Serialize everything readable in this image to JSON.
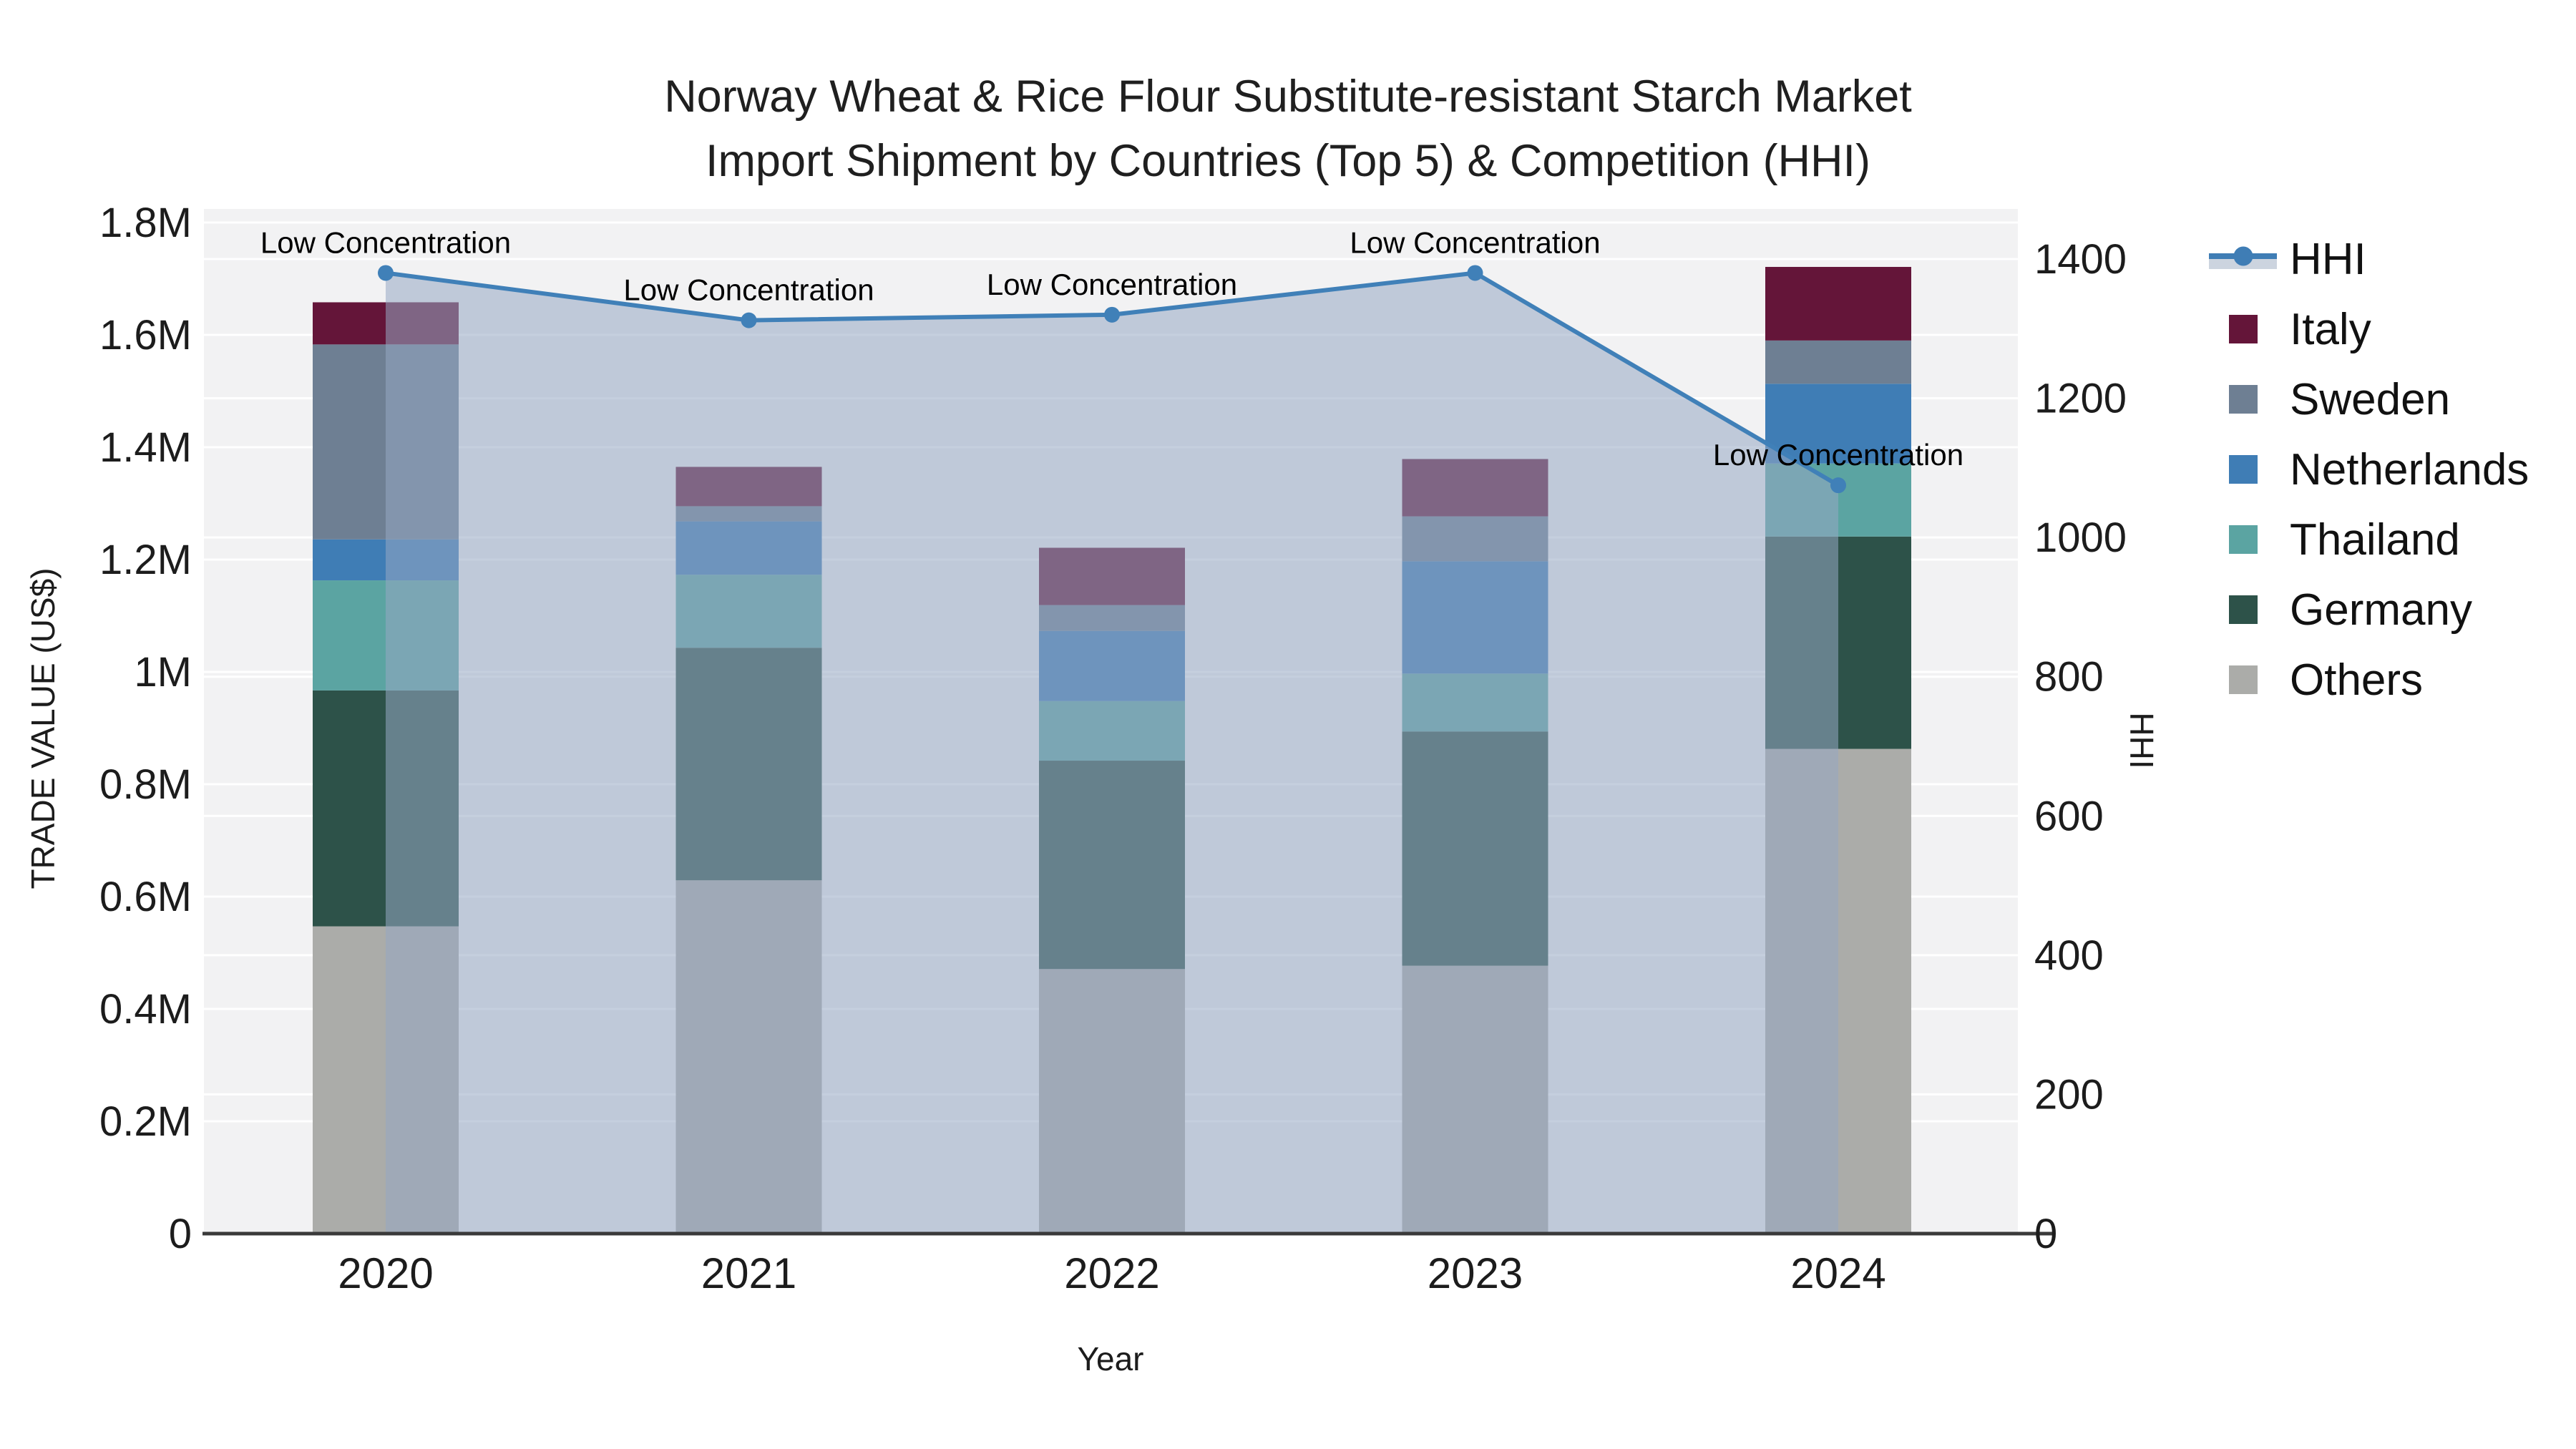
{
  "title": {
    "line1": "Norway Wheat & Rice Flour Substitute-resistant Starch Market",
    "line2": "Import Shipment by Countries (Top 5) & Competition (HHI)"
  },
  "colors": {
    "plot_background": "#f2f2f3",
    "gridline": "#ffffff",
    "axis_line": "#3a3a3a",
    "text": "#1c1c1c",
    "annotation_text": "#000000",
    "hhi_line": "#4080b8",
    "hhi_area": "rgba(150,168,194,0.55)"
  },
  "chart_data": {
    "type": "bar",
    "subtype": "stacked-bars-with-line-overlay-dual-axis",
    "title": "Norway Wheat & Rice Flour Substitute-resistant Starch Market Import Shipment by Countries (Top 5) & Competition (HHI)",
    "categories": [
      "2020",
      "2021",
      "2022",
      "2023",
      "2024"
    ],
    "xlabel": "Year",
    "ylabel_left": "TRADE VALUE (US$)",
    "ylabel_right": "HHI",
    "ylim_left": [
      0,
      1800000
    ],
    "ylim_right": [
      0,
      1400
    ],
    "grid": true,
    "legend_position": "right",
    "legend_order": [
      "HHI",
      "Italy",
      "Sweden",
      "Netherlands",
      "Thailand",
      "Germany",
      "Others"
    ],
    "bar_series": [
      {
        "name": "Others",
        "color": "#abaca9",
        "values": [
          547000,
          629000,
          471000,
          477000,
          863000
        ]
      },
      {
        "name": "Germany",
        "color": "#2d5249",
        "values": [
          420000,
          414000,
          371000,
          417000,
          378000
        ]
      },
      {
        "name": "Thailand",
        "color": "#5ba4a2",
        "values": [
          196000,
          130000,
          106000,
          103000,
          130000
        ]
      },
      {
        "name": "Netherlands",
        "color": "#3f7db5",
        "values": [
          73000,
          95000,
          125000,
          200000,
          142000
        ]
      },
      {
        "name": "Sweden",
        "color": "#6e7f93",
        "values": [
          347000,
          27000,
          46000,
          80000,
          77000
        ]
      },
      {
        "name": "Italy",
        "color": "#641539",
        "values": [
          75000,
          70000,
          102000,
          102000,
          131000
        ]
      }
    ],
    "line_series": {
      "name": "HHI",
      "axis": "right",
      "color": "#4080b8",
      "area_fill": "rgba(150,168,194,0.55)",
      "values": [
        1380,
        1312,
        1320,
        1380,
        1075
      ],
      "point_annotations": [
        "Low Concentration",
        "Low Concentration",
        "Low Concentration",
        "Low Concentration",
        "Low Concentration"
      ]
    },
    "y_left_ticks": [
      {
        "value": 0,
        "label": "0"
      },
      {
        "value": 200000,
        "label": "0.2M"
      },
      {
        "value": 400000,
        "label": "0.4M"
      },
      {
        "value": 600000,
        "label": "0.6M"
      },
      {
        "value": 800000,
        "label": "0.8M"
      },
      {
        "value": 1000000,
        "label": "1M"
      },
      {
        "value": 1200000,
        "label": "1.2M"
      },
      {
        "value": 1400000,
        "label": "1.4M"
      },
      {
        "value": 1600000,
        "label": "1.6M"
      },
      {
        "value": 1800000,
        "label": "1.8M"
      }
    ],
    "y_right_ticks": [
      {
        "value": 0,
        "label": "0"
      },
      {
        "value": 200,
        "label": "200"
      },
      {
        "value": 400,
        "label": "400"
      },
      {
        "value": 600,
        "label": "600"
      },
      {
        "value": 800,
        "label": "800"
      },
      {
        "value": 1000,
        "label": "1000"
      },
      {
        "value": 1200,
        "label": "1200"
      },
      {
        "value": 1400,
        "label": "1400"
      }
    ]
  }
}
